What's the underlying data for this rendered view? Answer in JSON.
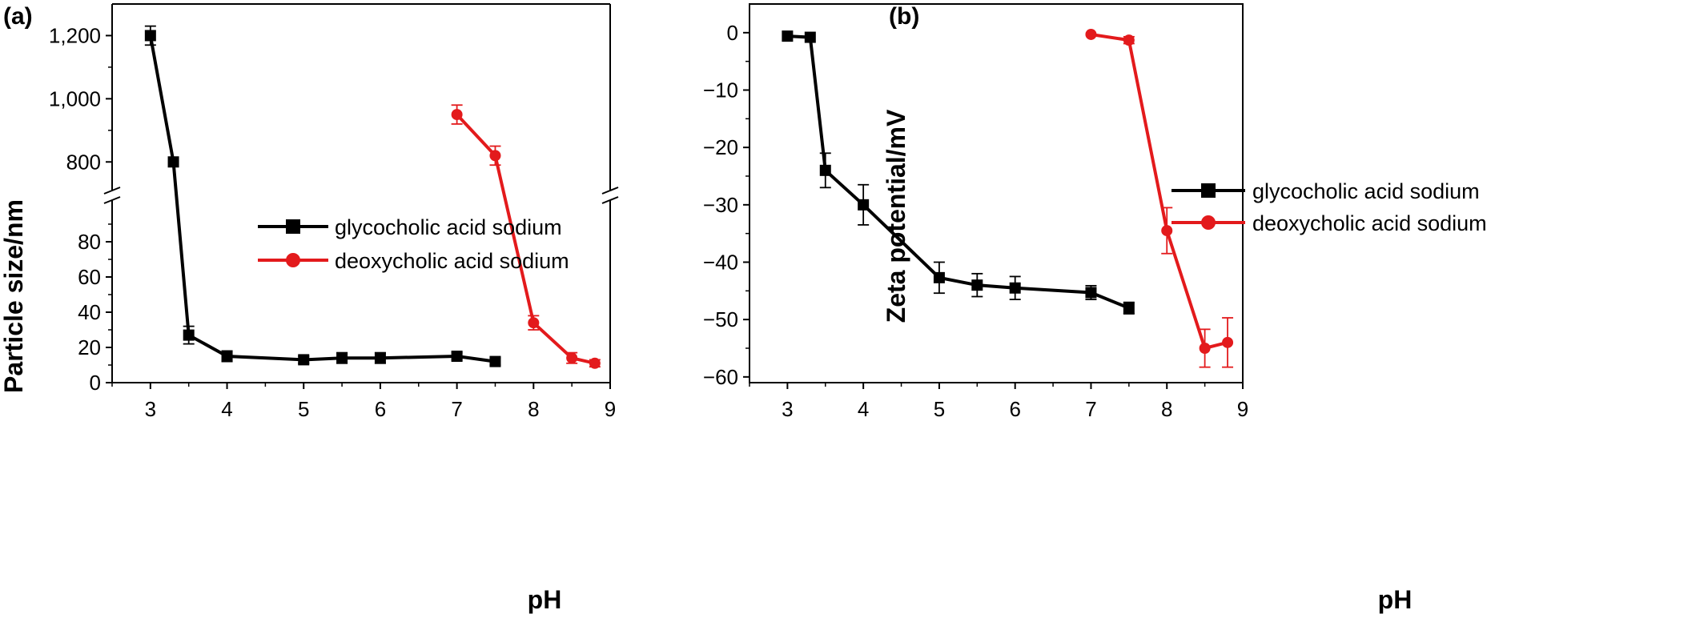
{
  "chart_data": [
    {
      "panel_label": "(a)",
      "type": "line",
      "xlabel": "pH",
      "ylabel": "Particle size/nm",
      "xlim": [
        2.5,
        9
      ],
      "x_ticks": [
        3,
        4,
        5,
        6,
        7,
        8,
        9
      ],
      "broken_y_axis": true,
      "ylim_lower": [
        0,
        100
      ],
      "ylim_upper": [
        750,
        1300
      ],
      "y_ticks_lower": [
        {
          "value": 0,
          "label": "0"
        },
        {
          "value": 20,
          "label": "20"
        },
        {
          "value": 40,
          "label": "40"
        },
        {
          "value": 60,
          "label": "60"
        },
        {
          "value": 80,
          "label": "80"
        }
      ],
      "y_ticks_upper": [
        {
          "value": 800,
          "label": "800"
        },
        {
          "value": 1000,
          "label": "1,000"
        },
        {
          "value": 1200,
          "label": "1,200"
        }
      ],
      "legend_position": "center",
      "grid": false,
      "series": [
        {
          "name": "glycocholic acid sodium",
          "color": "#000000",
          "marker": "square",
          "x": [
            3,
            3.3,
            3.5,
            4,
            5,
            5.5,
            6,
            7,
            7.5
          ],
          "y": [
            1200,
            800,
            27,
            15,
            13,
            14,
            14,
            15,
            12
          ],
          "err": [
            30,
            0,
            5,
            3,
            2,
            3,
            3,
            2,
            2
          ]
        },
        {
          "name": "deoxycholic acid sodium",
          "color": "#e31a1c",
          "marker": "circle",
          "x": [
            7,
            7.5,
            8,
            8.5,
            8.8
          ],
          "y": [
            950,
            820,
            34,
            14,
            11
          ],
          "err": [
            30,
            30,
            4,
            3,
            2
          ]
        }
      ]
    },
    {
      "panel_label": "(b)",
      "type": "line",
      "xlabel": "pH",
      "ylabel": "Zeta potential/mV",
      "xlim": [
        2.5,
        9
      ],
      "ylim": [
        -61,
        5
      ],
      "x_ticks": [
        3,
        4,
        5,
        6,
        7,
        8,
        9
      ],
      "y_ticks": [
        {
          "value": 0,
          "label": "0"
        },
        {
          "value": -10,
          "label": "−10"
        },
        {
          "value": -20,
          "label": "−20"
        },
        {
          "value": -30,
          "label": "−30"
        },
        {
          "value": -40,
          "label": "−40"
        },
        {
          "value": -50,
          "label": "−50"
        },
        {
          "value": -60,
          "label": "−60"
        }
      ],
      "legend_position": "center",
      "grid": false,
      "series": [
        {
          "name": "glycocholic acid sodium",
          "color": "#000000",
          "marker": "square",
          "x": [
            3,
            3.3,
            3.5,
            4,
            5,
            5.5,
            6,
            7,
            7.5
          ],
          "y": [
            -0.6,
            -0.8,
            -24,
            -30,
            -42.7,
            -44,
            -44.5,
            -45.3,
            -48
          ],
          "err": [
            0,
            0,
            3,
            3.5,
            2.7,
            2,
            2,
            1.2,
            1
          ]
        },
        {
          "name": "deoxycholic acid sodium",
          "color": "#e31a1c",
          "marker": "circle",
          "x": [
            7,
            7.5,
            8,
            8.5,
            8.8
          ],
          "y": [
            -0.3,
            -1.3,
            -34.5,
            -55,
            -54
          ],
          "err": [
            0,
            0.6,
            4,
            3.3,
            4.3
          ]
        }
      ]
    }
  ]
}
